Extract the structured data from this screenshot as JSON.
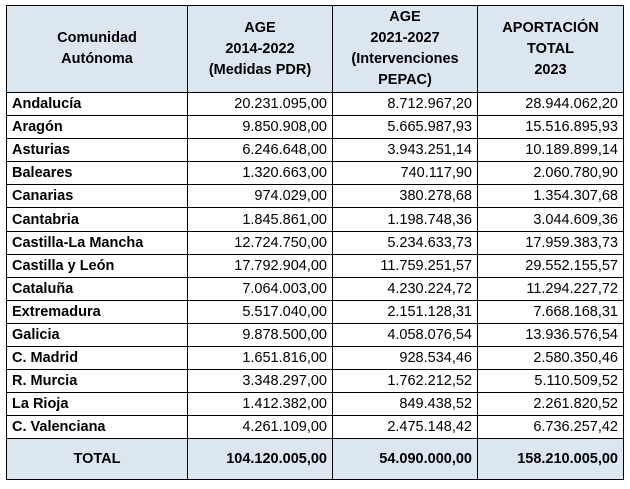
{
  "table": {
    "headers": [
      [
        "Comunidad",
        "Autónoma"
      ],
      [
        "AGE",
        "2014-2022",
        "(Medidas PDR)"
      ],
      [
        "AGE",
        "2021-2027",
        "(Intervenciones",
        "PEPAC)"
      ],
      [
        "APORTACIÓN",
        "TOTAL",
        "2023"
      ]
    ],
    "rows": [
      {
        "name": "Andalucía",
        "age_pdr": "20.231.095,00",
        "age_pepac": "8.712.967,20",
        "total": "28.944.062,20"
      },
      {
        "name": "Aragón",
        "age_pdr": "9.850.908,00",
        "age_pepac": "5.665.987,93",
        "total": "15.516.895,93"
      },
      {
        "name": "Asturias",
        "age_pdr": "6.246.648,00",
        "age_pepac": "3.943.251,14",
        "total": "10.189.899,14"
      },
      {
        "name": "Baleares",
        "age_pdr": "1.320.663,00",
        "age_pepac": "740.117,90",
        "total": "2.060.780,90"
      },
      {
        "name": "Canarias",
        "age_pdr": "974.029,00",
        "age_pepac": "380.278,68",
        "total": "1.354.307,68"
      },
      {
        "name": "Cantabria",
        "age_pdr": "1.845.861,00",
        "age_pepac": "1.198.748,36",
        "total": "3.044.609,36"
      },
      {
        "name": "Castilla-La Mancha",
        "age_pdr": "12.724.750,00",
        "age_pepac": "5.234.633,73",
        "total": "17.959.383,73"
      },
      {
        "name": "Castilla y León",
        "age_pdr": "17.792.904,00",
        "age_pepac": "11.759.251,57",
        "total": "29.552.155,57"
      },
      {
        "name": "Cataluña",
        "age_pdr": "7.064.003,00",
        "age_pepac": "4.230.224,72",
        "total": "11.294.227,72"
      },
      {
        "name": "Extremadura",
        "age_pdr": "5.517.040,00",
        "age_pepac": "2.151.128,31",
        "total": "7.668.168,31"
      },
      {
        "name": "Galicia",
        "age_pdr": "9.878.500,00",
        "age_pepac": "4.058.076,54",
        "total": "13.936.576,54"
      },
      {
        "name": "C. Madrid",
        "age_pdr": "1.651.816,00",
        "age_pepac": "928.534,46",
        "total": "2.580.350,46"
      },
      {
        "name": "R. Murcia",
        "age_pdr": "3.348.297,00",
        "age_pepac": "1.762.212,52",
        "total": "5.110.509,52"
      },
      {
        "name": "La Rioja",
        "age_pdr": "1.412.382,00",
        "age_pepac": "849.438,52",
        "total": "2.261.820,52"
      },
      {
        "name": "C. Valenciana",
        "age_pdr": "4.261.109,00",
        "age_pepac": "2.475.148,42",
        "total": "6.736.257,42"
      }
    ],
    "totals": {
      "label": "TOTAL",
      "age_pdr": "104.120.005,00",
      "age_pepac": "54.090.000,00",
      "total": "158.210.005,00"
    },
    "colors": {
      "header_bg": "#dce6f1",
      "border": "#000000"
    }
  }
}
